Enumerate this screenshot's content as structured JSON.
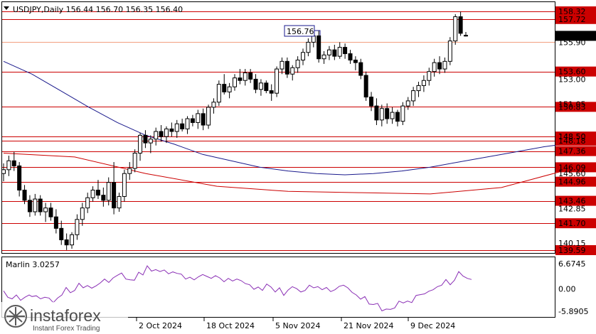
{
  "header": {
    "symbol_info": "USDJPY,Daily  156.44 156.70 156.35 156.40"
  },
  "indicator": {
    "label": "Marlin 3.0257",
    "ticks": [
      "6.6745",
      "0.00",
      "-5.8905"
    ],
    "range": [
      -5.8905,
      6.6745
    ],
    "color": "#8a2fb5"
  },
  "watermark": {
    "brand": "instaforex",
    "tagline": "Instant Forex Trading"
  },
  "colors": {
    "level_line": "#cc0000",
    "ma_fast": "#cc0000",
    "ma_slow": "#1a1a8c",
    "candle_up_fill": "#ffffff",
    "candle_down_fill": "#000000"
  },
  "chart_data": {
    "type": "candlestick",
    "ylim": [
      139.2,
      158.9
    ],
    "price_ticks": [
      "158.32",
      "157.72",
      "156.40",
      "155.90",
      "153.60",
      "150.83",
      "148.18",
      "147.36",
      "146.09",
      "144.96",
      "143.46",
      "142.85",
      "141.70",
      "140.15",
      "139.59"
    ],
    "hidden_ticks": [
      "153.00",
      "151.05",
      "148.50",
      "145.60"
    ],
    "levels": [
      {
        "value": 158.32,
        "label": "158.32"
      },
      {
        "value": 157.72,
        "label": "157.72"
      },
      {
        "value": 155.9,
        "label": "155.90",
        "style": "salmon"
      },
      {
        "value": 153.6,
        "label": "153.60"
      },
      {
        "value": 150.83,
        "label": "150.83"
      },
      {
        "value": 148.5,
        "label": "148.50"
      },
      {
        "value": 148.18,
        "label": "148.18"
      },
      {
        "value": 147.36,
        "label": "147.36"
      },
      {
        "value": 146.09,
        "label": "146.09"
      },
      {
        "value": 144.96,
        "label": "144.96"
      },
      {
        "value": 143.46,
        "label": "143.46"
      },
      {
        "value": 141.7,
        "label": "141.70"
      },
      {
        "value": 139.59,
        "label": "139.59"
      }
    ],
    "current_price": {
      "value": 156.4,
      "label": "156.40"
    },
    "peak_annotation": {
      "value": 156.76,
      "label": "156.76"
    },
    "date_labels": [
      "2 Oct 2024",
      "18 Oct 2024",
      "5 Nov 2024",
      "21 Nov 2024",
      "9 Dec 2024"
    ],
    "candles": [
      [
        145.6,
        146.4,
        145.0,
        145.9
      ],
      [
        145.9,
        147.0,
        145.4,
        146.6
      ],
      [
        146.6,
        147.3,
        145.8,
        146.2
      ],
      [
        146.2,
        146.5,
        143.8,
        144.3
      ],
      [
        144.3,
        144.7,
        143.2,
        143.5
      ],
      [
        143.5,
        143.9,
        142.2,
        142.6
      ],
      [
        142.6,
        144.0,
        142.3,
        143.6
      ],
      [
        143.6,
        143.9,
        142.3,
        142.6
      ],
      [
        142.6,
        143.3,
        141.8,
        142.9
      ],
      [
        142.9,
        143.3,
        141.9,
        142.2
      ],
      [
        142.2,
        142.8,
        140.9,
        141.3
      ],
      [
        141.3,
        141.9,
        140.0,
        140.4
      ],
      [
        140.4,
        140.9,
        139.6,
        140.0
      ],
      [
        140.0,
        141.0,
        139.7,
        140.8
      ],
      [
        140.8,
        142.4,
        140.4,
        142.0
      ],
      [
        142.0,
        143.3,
        141.5,
        142.9
      ],
      [
        142.9,
        144.1,
        142.5,
        143.7
      ],
      [
        143.7,
        144.6,
        143.4,
        144.3
      ],
      [
        144.3,
        145.1,
        143.6,
        143.9
      ],
      [
        143.9,
        144.5,
        143.0,
        143.5
      ],
      [
        143.5,
        145.3,
        143.1,
        144.9
      ],
      [
        144.9,
        146.5,
        142.4,
        142.9
      ],
      [
        142.9,
        144.1,
        142.6,
        143.8
      ],
      [
        143.8,
        145.9,
        143.4,
        145.6
      ],
      [
        145.6,
        146.5,
        145.1,
        146.0
      ],
      [
        146.0,
        147.5,
        145.7,
        147.2
      ],
      [
        147.2,
        148.8,
        146.6,
        148.6
      ],
      [
        148.6,
        149.0,
        147.6,
        148.0
      ],
      [
        148.0,
        148.6,
        147.2,
        148.3
      ],
      [
        148.3,
        149.2,
        147.8,
        148.9
      ],
      [
        148.9,
        149.4,
        148.1,
        148.5
      ],
      [
        148.5,
        149.3,
        148.0,
        149.1
      ],
      [
        149.1,
        149.6,
        148.5,
        148.9
      ],
      [
        148.9,
        149.8,
        148.4,
        149.5
      ],
      [
        149.5,
        149.9,
        148.9,
        149.1
      ],
      [
        149.1,
        150.1,
        148.7,
        149.9
      ],
      [
        149.9,
        150.2,
        149.3,
        149.6
      ],
      [
        149.6,
        150.6,
        149.1,
        150.3
      ],
      [
        150.3,
        150.7,
        149.0,
        149.4
      ],
      [
        149.4,
        151.0,
        149.1,
        150.8
      ],
      [
        150.8,
        151.5,
        150.3,
        151.2
      ],
      [
        151.2,
        152.9,
        150.9,
        152.6
      ],
      [
        152.6,
        153.4,
        151.8,
        152.0
      ],
      [
        152.0,
        152.7,
        151.5,
        152.4
      ],
      [
        152.4,
        153.4,
        152.1,
        153.1
      ],
      [
        153.1,
        153.8,
        152.6,
        152.9
      ],
      [
        152.9,
        153.8,
        152.5,
        153.5
      ],
      [
        153.5,
        153.8,
        152.7,
        153.0
      ],
      [
        153.0,
        153.4,
        151.9,
        152.2
      ],
      [
        152.2,
        153.0,
        151.7,
        152.7
      ],
      [
        152.7,
        152.9,
        151.9,
        152.1
      ],
      [
        152.1,
        152.6,
        151.3,
        151.9
      ],
      [
        151.9,
        154.0,
        151.6,
        153.8
      ],
      [
        153.8,
        154.7,
        153.4,
        154.4
      ],
      [
        154.4,
        154.7,
        153.1,
        153.4
      ],
      [
        153.4,
        154.1,
        152.9,
        153.9
      ],
      [
        153.9,
        154.8,
        153.5,
        154.5
      ],
      [
        154.5,
        155.4,
        154.1,
        155.1
      ],
      [
        155.1,
        156.2,
        154.8,
        155.9
      ],
      [
        155.9,
        156.9,
        155.5,
        156.4
      ],
      [
        156.4,
        156.8,
        154.3,
        154.6
      ],
      [
        154.6,
        155.2,
        154.2,
        154.9
      ],
      [
        154.9,
        155.6,
        154.5,
        155.3
      ],
      [
        155.3,
        155.7,
        154.5,
        154.8
      ],
      [
        154.8,
        155.9,
        154.6,
        155.5
      ],
      [
        155.5,
        155.8,
        154.6,
        155.0
      ],
      [
        155.0,
        155.3,
        154.2,
        154.5
      ],
      [
        154.5,
        154.8,
        153.7,
        154.3
      ],
      [
        154.3,
        154.6,
        153.0,
        153.3
      ],
      [
        153.3,
        153.6,
        151.3,
        151.6
      ],
      [
        151.6,
        152.0,
        150.5,
        150.9
      ],
      [
        150.9,
        151.5,
        149.4,
        149.8
      ],
      [
        149.8,
        151.0,
        149.3,
        150.7
      ],
      [
        150.7,
        151.1,
        149.5,
        149.9
      ],
      [
        149.9,
        150.8,
        149.5,
        150.4
      ],
      [
        150.4,
        150.6,
        149.3,
        149.7
      ],
      [
        149.7,
        151.2,
        149.4,
        150.9
      ],
      [
        150.9,
        151.6,
        150.6,
        151.3
      ],
      [
        151.3,
        152.4,
        150.9,
        152.1
      ],
      [
        152.1,
        152.8,
        151.6,
        152.5
      ],
      [
        152.5,
        153.3,
        152.0,
        152.9
      ],
      [
        152.9,
        153.9,
        152.5,
        153.6
      ],
      [
        153.6,
        154.6,
        153.2,
        154.3
      ],
      [
        154.3,
        154.8,
        153.4,
        153.8
      ],
      [
        153.8,
        154.7,
        153.5,
        154.4
      ],
      [
        154.4,
        156.3,
        154.1,
        156.0
      ],
      [
        156.0,
        158.1,
        155.7,
        157.9
      ],
      [
        157.9,
        158.3,
        156.4,
        156.6
      ],
      [
        156.44,
        156.7,
        156.35,
        156.4
      ]
    ],
    "ma_fast": [
      [
        0,
        147.2
      ],
      [
        4,
        146.9
      ],
      [
        8,
        145.6
      ],
      [
        12,
        144.6
      ],
      [
        16,
        144.2
      ],
      [
        20,
        144.1
      ],
      [
        24,
        144.0
      ],
      [
        28,
        144.5
      ],
      [
        32,
        146.0
      ],
      [
        36,
        147.2
      ],
      [
        40,
        147.7
      ],
      [
        44,
        148.3
      ],
      [
        48,
        149.2
      ],
      [
        52,
        149.8
      ],
      [
        56,
        150.6
      ],
      [
        60,
        151.3
      ],
      [
        64,
        151.8
      ],
      [
        68,
        152.2
      ],
      [
        72,
        152.3
      ],
      [
        76,
        152.1
      ],
      [
        80,
        151.5
      ],
      [
        84,
        151.0
      ],
      [
        88,
        150.8
      ],
      [
        92,
        150.7
      ],
      [
        96,
        150.9
      ],
      [
        100,
        151.5
      ],
      [
        104,
        152.2
      ],
      [
        108,
        152.9
      ],
      [
        112,
        153.4
      ],
      [
        116,
        153.9
      ],
      [
        120,
        154.4
      ],
      [
        124,
        154.9
      ],
      [
        128,
        155.3
      ],
      [
        131,
        155.4
      ]
    ],
    "ma_slow": [
      [
        0,
        154.4
      ],
      [
        8,
        153.4
      ],
      [
        16,
        152.1
      ],
      [
        24,
        150.8
      ],
      [
        32,
        149.6
      ],
      [
        40,
        148.6
      ],
      [
        48,
        147.9
      ],
      [
        56,
        147.1
      ],
      [
        64,
        146.6
      ],
      [
        72,
        146.1
      ],
      [
        80,
        145.8
      ],
      [
        88,
        145.6
      ],
      [
        96,
        145.5
      ],
      [
        104,
        145.6
      ],
      [
        112,
        145.8
      ],
      [
        120,
        146.1
      ],
      [
        128,
        146.5
      ],
      [
        136,
        146.9
      ],
      [
        144,
        147.3
      ],
      [
        152,
        147.7
      ],
      [
        160,
        148.0
      ],
      [
        168,
        148.2
      ],
      [
        176,
        148.4
      ],
      [
        184,
        148.6
      ],
      [
        192,
        148.8
      ],
      [
        200,
        149.0
      ],
      [
        208,
        149.2
      ],
      [
        216,
        149.5
      ],
      [
        224,
        149.9
      ],
      [
        232,
        150.3
      ],
      [
        240,
        150.9
      ]
    ],
    "indicator_values": [
      [
        0,
        -0.5
      ],
      [
        6,
        -2.2
      ],
      [
        12,
        -2.6
      ],
      [
        18,
        -1.6
      ],
      [
        24,
        -3.0
      ],
      [
        30,
        -2.2
      ],
      [
        36,
        -1.6
      ],
      [
        40,
        -2.0
      ],
      [
        46,
        -1.8
      ],
      [
        52,
        -2.6
      ],
      [
        58,
        -2.2
      ],
      [
        64,
        -2.4
      ],
      [
        70,
        -3.6
      ],
      [
        76,
        -2.4
      ],
      [
        82,
        -1.6
      ],
      [
        88,
        0.4
      ],
      [
        94,
        -1.0
      ],
      [
        100,
        -0.4
      ],
      [
        106,
        1.5
      ],
      [
        112,
        0.3
      ],
      [
        118,
        0.9
      ],
      [
        124,
        0.2
      ],
      [
        130,
        0.8
      ],
      [
        136,
        1.6
      ],
      [
        142,
        2.6
      ],
      [
        148,
        1.7
      ],
      [
        154,
        2.9
      ],
      [
        160,
        3.6
      ],
      [
        166,
        4.2
      ],
      [
        172,
        2.6
      ],
      [
        178,
        2.4
      ],
      [
        184,
        2.3
      ],
      [
        190,
        4.4
      ],
      [
        196,
        3.7
      ],
      [
        202,
        6.1
      ],
      [
        208,
        4.7
      ],
      [
        214,
        5.1
      ],
      [
        220,
        4.6
      ],
      [
        226,
        5.0
      ],
      [
        232,
        4.0
      ],
      [
        238,
        4.5
      ],
      [
        244,
        4.1
      ],
      [
        250,
        3.9
      ],
      [
        256,
        2.6
      ],
      [
        262,
        3.1
      ],
      [
        268,
        2.4
      ],
      [
        274,
        3.2
      ],
      [
        280,
        3.8
      ],
      [
        286,
        3.3
      ],
      [
        292,
        2.8
      ],
      [
        298,
        3.5
      ],
      [
        304,
        2.9
      ],
      [
        310,
        1.9
      ],
      [
        316,
        2.8
      ],
      [
        322,
        2.1
      ],
      [
        328,
        2.6
      ],
      [
        334,
        2.2
      ],
      [
        340,
        1.4
      ],
      [
        346,
        1.1
      ],
      [
        352,
        -0.1
      ],
      [
        358,
        0.5
      ],
      [
        364,
        -0.4
      ],
      [
        370,
        1.3
      ],
      [
        376,
        0.5
      ],
      [
        382,
        -0.8
      ],
      [
        388,
        0.3
      ],
      [
        394,
        -1.7
      ],
      [
        400,
        -0.3
      ],
      [
        406,
        0.6
      ],
      [
        412,
        0.1
      ],
      [
        418,
        -0.8
      ],
      [
        424,
        -0.4
      ],
      [
        430,
        1.0
      ],
      [
        436,
        0.3
      ],
      [
        442,
        0.6
      ],
      [
        448,
        -0.2
      ],
      [
        454,
        0.4
      ],
      [
        460,
        -0.7
      ],
      [
        466,
        -0.2
      ],
      [
        472,
        0.7
      ],
      [
        478,
        1.0
      ],
      [
        484,
        0.3
      ],
      [
        490,
        -0.9
      ],
      [
        496,
        -1.6
      ],
      [
        502,
        -2.7
      ],
      [
        508,
        -2.0
      ],
      [
        514,
        -4.0
      ],
      [
        520,
        -4.1
      ],
      [
        526,
        -3.8
      ],
      [
        532,
        -5.8
      ],
      [
        538,
        -5.3
      ],
      [
        544,
        -5.4
      ],
      [
        550,
        -5.0
      ],
      [
        556,
        -3.2
      ],
      [
        562,
        -3.7
      ],
      [
        568,
        -3.2
      ],
      [
        574,
        -3.6
      ],
      [
        580,
        -1.7
      ],
      [
        586,
        -1.5
      ],
      [
        592,
        -1.3
      ],
      [
        598,
        -0.6
      ],
      [
        604,
        -0.2
      ],
      [
        610,
        0.6
      ],
      [
        616,
        1.0
      ],
      [
        622,
        2.5
      ],
      [
        628,
        1.1
      ],
      [
        634,
        2.3
      ],
      [
        640,
        4.6
      ],
      [
        646,
        3.4
      ],
      [
        652,
        2.8
      ],
      [
        658,
        2.5
      ]
    ]
  }
}
